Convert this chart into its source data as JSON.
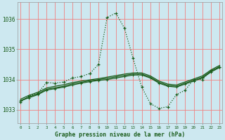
{
  "title": "Graphe pression niveau de la mer (hPa)",
  "bg_color": "#cde8f0",
  "grid_color": "#f08080",
  "line_color": "#1a5c1a",
  "x_ticks": [
    0,
    1,
    2,
    3,
    4,
    5,
    6,
    7,
    8,
    9,
    10,
    11,
    12,
    13,
    14,
    15,
    16,
    17,
    18,
    19,
    20,
    21,
    22,
    23
  ],
  "y_ticks": [
    1033,
    1034,
    1035,
    1036
  ],
  "ylim": [
    1032.55,
    1036.55
  ],
  "xlim": [
    -0.3,
    23.3
  ],
  "series1_x": [
    0,
    1,
    2,
    3,
    4,
    5,
    6,
    7,
    8,
    9,
    10,
    11,
    12,
    13,
    14,
    15,
    16,
    17,
    18,
    19,
    20,
    21,
    22,
    23
  ],
  "series1_y": [
    1033.25,
    1033.45,
    1033.55,
    1033.9,
    1033.88,
    1033.92,
    1034.05,
    1034.1,
    1034.2,
    1034.5,
    1036.05,
    1036.2,
    1035.7,
    1034.7,
    1033.75,
    1033.2,
    1033.05,
    1033.1,
    1033.5,
    1033.65,
    1034.0,
    1034.0,
    1034.3,
    1034.4
  ],
  "series2_x": [
    0,
    1,
    2,
    3,
    4,
    5,
    6,
    7,
    8,
    9,
    10,
    11,
    12,
    13,
    14,
    15,
    16,
    17,
    18,
    19,
    20,
    21,
    22,
    23
  ],
  "series2_y": [
    1033.3,
    1033.4,
    1033.5,
    1033.65,
    1033.7,
    1033.75,
    1033.82,
    1033.88,
    1033.93,
    1033.97,
    1034.0,
    1034.05,
    1034.1,
    1034.15,
    1034.15,
    1034.05,
    1033.88,
    1033.78,
    1033.75,
    1033.85,
    1033.95,
    1034.05,
    1034.25,
    1034.4
  ],
  "series3_x": [
    0,
    1,
    2,
    3,
    4,
    5,
    6,
    7,
    8,
    9,
    10,
    11,
    12,
    13,
    14,
    15,
    16,
    17,
    18,
    19,
    20,
    21,
    22,
    23
  ],
  "series3_y": [
    1033.35,
    1033.48,
    1033.58,
    1033.72,
    1033.78,
    1033.83,
    1033.9,
    1033.95,
    1033.99,
    1034.03,
    1034.08,
    1034.13,
    1034.18,
    1034.22,
    1034.22,
    1034.12,
    1033.95,
    1033.85,
    1033.82,
    1033.92,
    1034.02,
    1034.12,
    1034.32,
    1034.47
  ],
  "series4_x": [
    0,
    1,
    2,
    3,
    4,
    5,
    6,
    7,
    8,
    9,
    10,
    11,
    12,
    13,
    14,
    15,
    16,
    17,
    18,
    19,
    20,
    21,
    22,
    23
  ],
  "series4_y": [
    1033.3,
    1033.43,
    1033.53,
    1033.68,
    1033.73,
    1033.78,
    1033.86,
    1033.91,
    1033.96,
    1034.0,
    1034.04,
    1034.09,
    1034.14,
    1034.18,
    1034.18,
    1034.08,
    1033.91,
    1033.81,
    1033.78,
    1033.88,
    1033.98,
    1034.08,
    1034.28,
    1034.43
  ]
}
